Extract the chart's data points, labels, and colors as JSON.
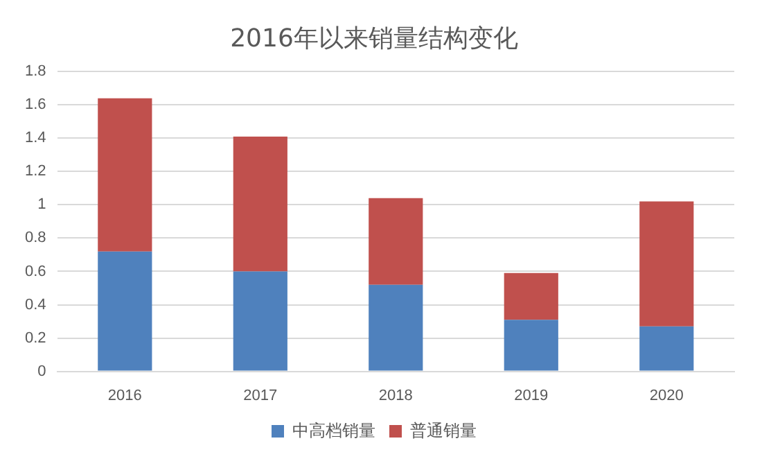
{
  "chart_data": {
    "type": "bar",
    "title": "2016年以来销量结构变化",
    "categories": [
      "2016",
      "2017",
      "2018",
      "2019",
      "2020"
    ],
    "stacked": true,
    "series": [
      {
        "name": "中高档销量",
        "color": "#4f81bd",
        "values": [
          0.72,
          0.6,
          0.52,
          0.31,
          0.27
        ]
      },
      {
        "name": "普通销量",
        "color": "#c0504d",
        "values": [
          0.92,
          0.81,
          0.52,
          0.28,
          0.75
        ]
      }
    ],
    "ylim": [
      0,
      1.8
    ],
    "yticks": [
      0,
      0.2,
      0.4,
      0.6,
      0.8,
      1,
      1.2,
      1.4,
      1.6,
      1.8
    ],
    "grid": "y",
    "legend": "bottom"
  }
}
